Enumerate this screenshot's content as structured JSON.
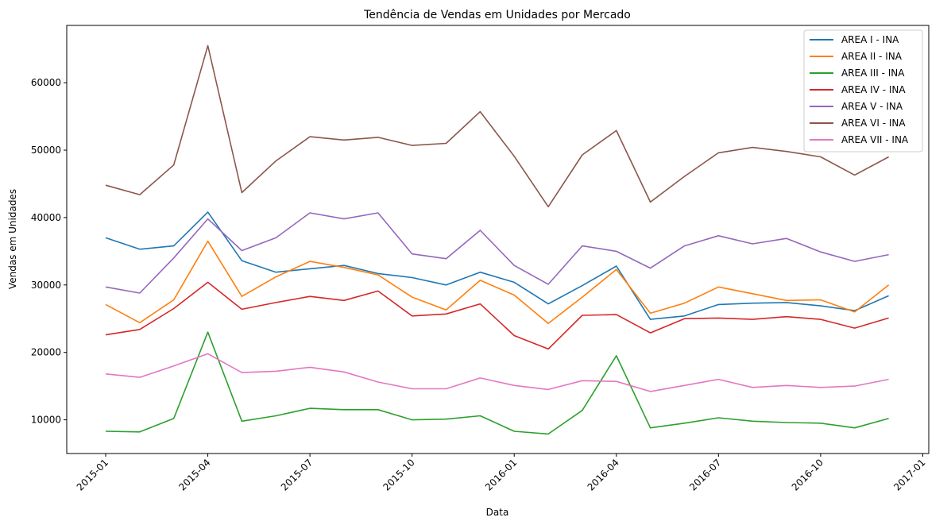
{
  "chart_data": {
    "type": "line",
    "title": "Tendência de Vendas em Unidades por Mercado",
    "xlabel": "Data",
    "ylabel": "Vendas em Unidades",
    "x": [
      "2015-01",
      "2015-02",
      "2015-03",
      "2015-04",
      "2015-05",
      "2015-06",
      "2015-07",
      "2015-08",
      "2015-09",
      "2015-10",
      "2015-11",
      "2015-12",
      "2016-01",
      "2016-02",
      "2016-03",
      "2016-04",
      "2016-05",
      "2016-06",
      "2016-07",
      "2016-08",
      "2016-09",
      "2016-10",
      "2016-11",
      "2016-12"
    ],
    "x_ticks": [
      "2015-01",
      "2015-04",
      "2015-07",
      "2015-10",
      "2016-01",
      "2016-04",
      "2016-07",
      "2016-10",
      "2017-01"
    ],
    "y_ticks": [
      10000,
      20000,
      30000,
      40000,
      50000,
      60000
    ],
    "ylim": [
      5000,
      68500
    ],
    "legend_position": "top-right",
    "grid": false,
    "series": [
      {
        "name": "AREA I - INA",
        "color": "#1f77b4",
        "values": [
          37000,
          35300,
          35800,
          40800,
          33600,
          31900,
          32400,
          32900,
          31700,
          31100,
          30000,
          31900,
          30400,
          27200,
          29900,
          32800,
          24900,
          25400,
          27100,
          27300,
          27400,
          26900,
          26200,
          28400
        ]
      },
      {
        "name": "AREA II - INA",
        "color": "#ff7f0e",
        "values": [
          27100,
          24400,
          27800,
          36500,
          28300,
          31200,
          33500,
          32600,
          31500,
          28200,
          26300,
          30700,
          28500,
          24300,
          28200,
          32300,
          25800,
          27300,
          29700,
          28700,
          27700,
          27800,
          26000,
          30000
        ]
      },
      {
        "name": "AREA III - INA",
        "color": "#2ca02c",
        "values": [
          8300,
          8200,
          10200,
          23000,
          9800,
          10600,
          11700,
          11500,
          11500,
          10000,
          10100,
          10600,
          8300,
          7900,
          11400,
          19500,
          8800,
          9500,
          10300,
          9800,
          9600,
          9500,
          8800,
          10200
        ]
      },
      {
        "name": "AREA IV - INA",
        "color": "#d62728",
        "values": [
          22600,
          23400,
          26500,
          30400,
          26400,
          27400,
          28300,
          27700,
          29100,
          25400,
          25700,
          27200,
          22500,
          20500,
          25500,
          25600,
          22900,
          25000,
          25100,
          24900,
          25300,
          24900,
          23600,
          25100
        ]
      },
      {
        "name": "AREA V - INA",
        "color": "#9467bd",
        "values": [
          29700,
          28800,
          34000,
          39800,
          35100,
          37000,
          40700,
          39800,
          40700,
          34600,
          33900,
          38100,
          32900,
          30100,
          35800,
          35000,
          32500,
          35800,
          37300,
          36100,
          36900,
          34900,
          33500,
          34500
        ]
      },
      {
        "name": "AREA VI - INA",
        "color": "#8c564b",
        "values": [
          44800,
          43400,
          47800,
          65500,
          43700,
          48400,
          52000,
          51500,
          51900,
          50700,
          51000,
          55700,
          49100,
          41600,
          49300,
          52900,
          42300,
          46100,
          49600,
          50400,
          49800,
          49000,
          46300,
          49000
        ]
      },
      {
        "name": "AREA VII - INA",
        "color": "#e377c2",
        "values": [
          16800,
          16300,
          18000,
          19800,
          17000,
          17200,
          17800,
          17100,
          15600,
          14600,
          14600,
          16200,
          15100,
          14500,
          15800,
          15700,
          14200,
          15100,
          16000,
          14800,
          15100,
          14800,
          15000,
          16000
        ]
      }
    ]
  }
}
